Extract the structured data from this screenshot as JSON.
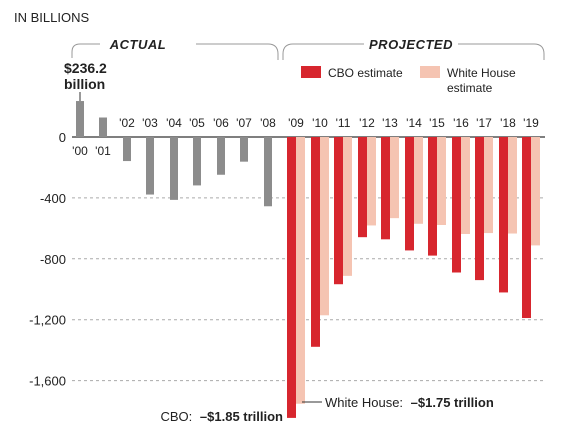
{
  "chart_data": {
    "type": "bar",
    "unit_label": "IN BILLIONS",
    "sections": {
      "actual": "ACTUAL",
      "projected": "PROJECTED"
    },
    "yticks": [
      {
        "value": 0,
        "label": "0"
      },
      {
        "value": -400,
        "label": "-400"
      },
      {
        "value": -800,
        "label": "-800"
      },
      {
        "value": -1200,
        "label": "-1,200"
      },
      {
        "value": -1600,
        "label": "-1,600"
      }
    ],
    "ylim": [
      -1850,
      236.2
    ],
    "grid": true,
    "actual": {
      "categories": [
        "'00",
        "'01",
        "'02",
        "'03",
        "'04",
        "'05",
        "'06",
        "'07",
        "'08"
      ],
      "values": [
        236.2,
        128,
        -158,
        -378,
        -413,
        -318,
        -248,
        -162,
        -455
      ],
      "color": "#8c8c8c"
    },
    "projected": {
      "categories": [
        "'09",
        "'10",
        "'11",
        "'12",
        "'13",
        "'14",
        "'15",
        "'16",
        "'17",
        "'18",
        "'19"
      ],
      "series": [
        {
          "name": "CBO estimate",
          "values": [
            -1845,
            -1378,
            -967,
            -658,
            -672,
            -745,
            -779,
            -890,
            -940,
            -1021,
            -1189
          ],
          "color": "#d7262e"
        },
        {
          "name": "White House estimate",
          "values": [
            -1752,
            -1171,
            -912,
            -581,
            -533,
            -570,
            -578,
            -637,
            -631,
            -634,
            -712
          ],
          "color": "#f5c4b2"
        }
      ]
    },
    "legend_placement": "top-right",
    "legend_labels": [
      "CBO estimate",
      "White House",
      "estimate"
    ],
    "callouts": {
      "first_bar_amount": "$236.2",
      "first_bar_unit": "billion",
      "cbo_prefix": "CBO:",
      "cbo_value": "–$1.85 trillion",
      "wh_prefix": "White House:",
      "wh_value": "–$1.75 trillion"
    }
  }
}
